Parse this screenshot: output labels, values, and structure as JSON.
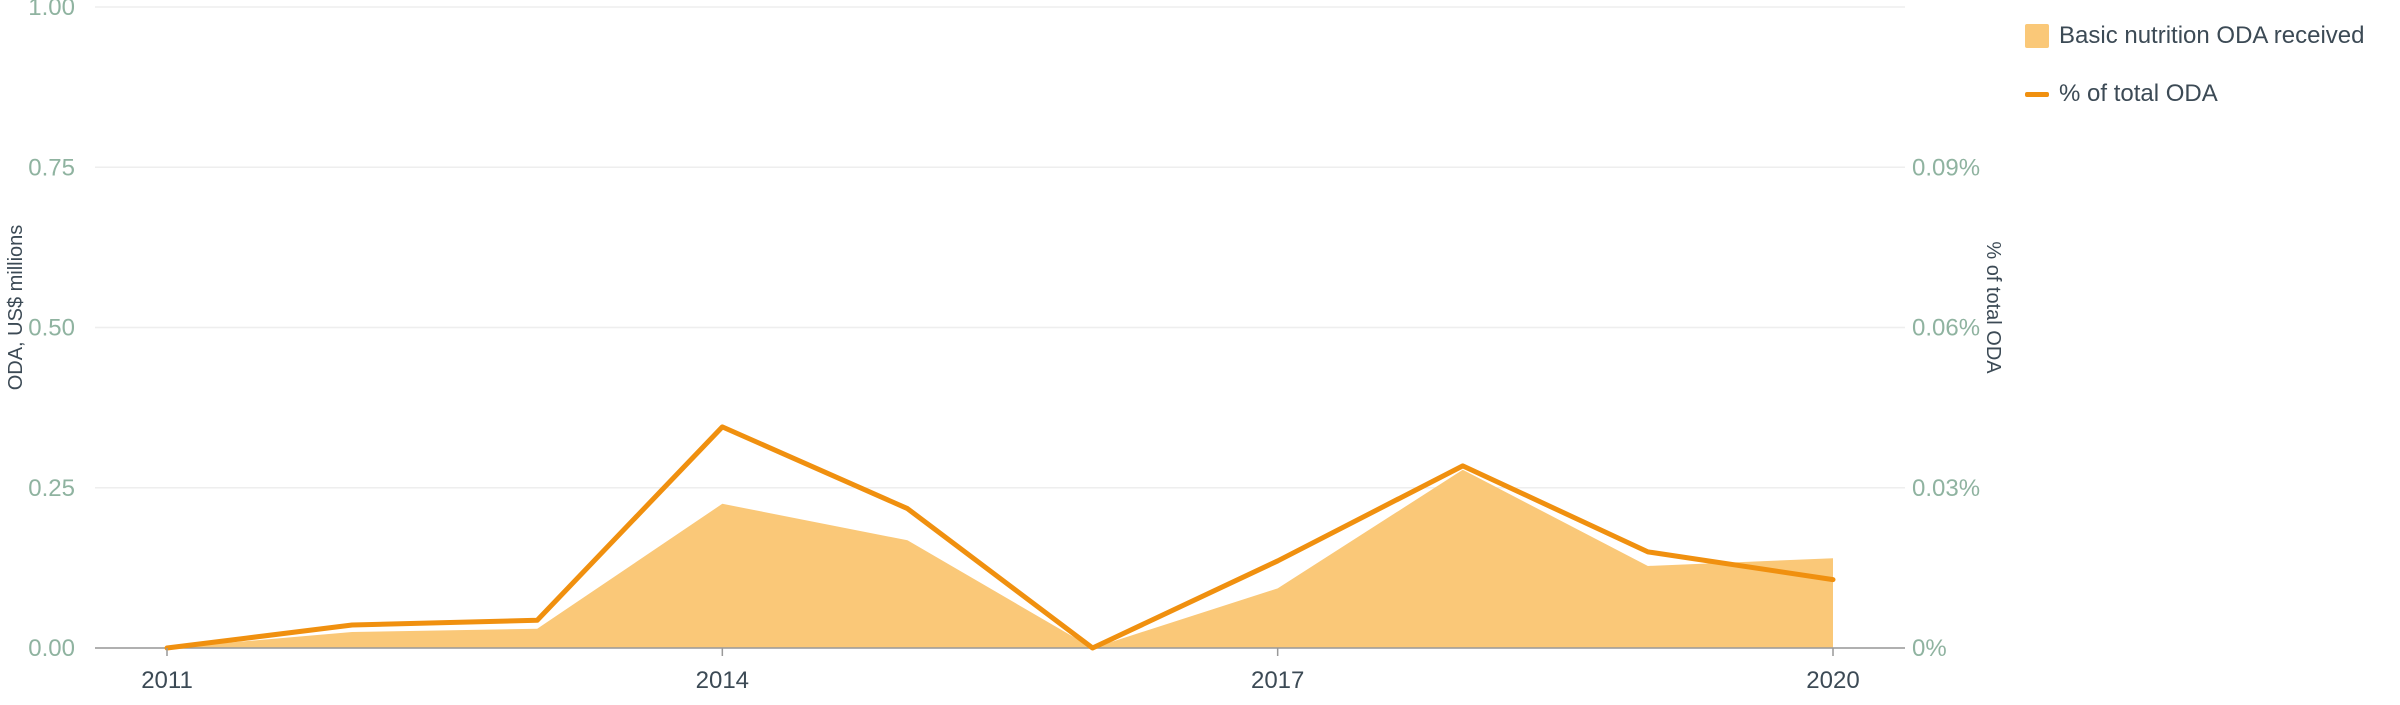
{
  "chart_data": {
    "type": "area",
    "x": [
      2011,
      2012,
      2013,
      2014,
      2015,
      2016,
      2017,
      2018,
      2019,
      2020
    ],
    "xticks": [
      "2011",
      "2014",
      "2017",
      "2020"
    ],
    "series": [
      {
        "name": "Basic nutrition ODA received",
        "type": "area",
        "axis": "left",
        "values": [
          0.0,
          0.025,
          0.03,
          0.225,
          0.168,
          0.0,
          0.093,
          0.278,
          0.128,
          0.14
        ]
      },
      {
        "name": "% of total ODA",
        "type": "line",
        "axis": "right",
        "values": [
          0.0,
          0.0043,
          0.0052,
          0.0414,
          0.0261,
          0.0,
          0.0163,
          0.0341,
          0.018,
          0.0128
        ]
      }
    ],
    "ylabel": "ODA, US$ millions",
    "y2label": "% of total ODA",
    "ylim": [
      0,
      1
    ],
    "y2lim": [
      0,
      0.12
    ],
    "yticks": [
      "0.00",
      "0.25",
      "0.50",
      "0.75",
      "1.00"
    ],
    "y2ticks": [
      "0%",
      "0.03%",
      "0.06%",
      "0.09%"
    ],
    "grid": true,
    "legend_position": "top-right",
    "colors": {
      "area": "#fac878",
      "line": "#f0900f",
      "tick_text": "#8fb3a0",
      "x_tick_text": "#3c4a55",
      "label_text": "#3c4a55",
      "grid": "#eeeeee",
      "axis": "#999999"
    }
  }
}
